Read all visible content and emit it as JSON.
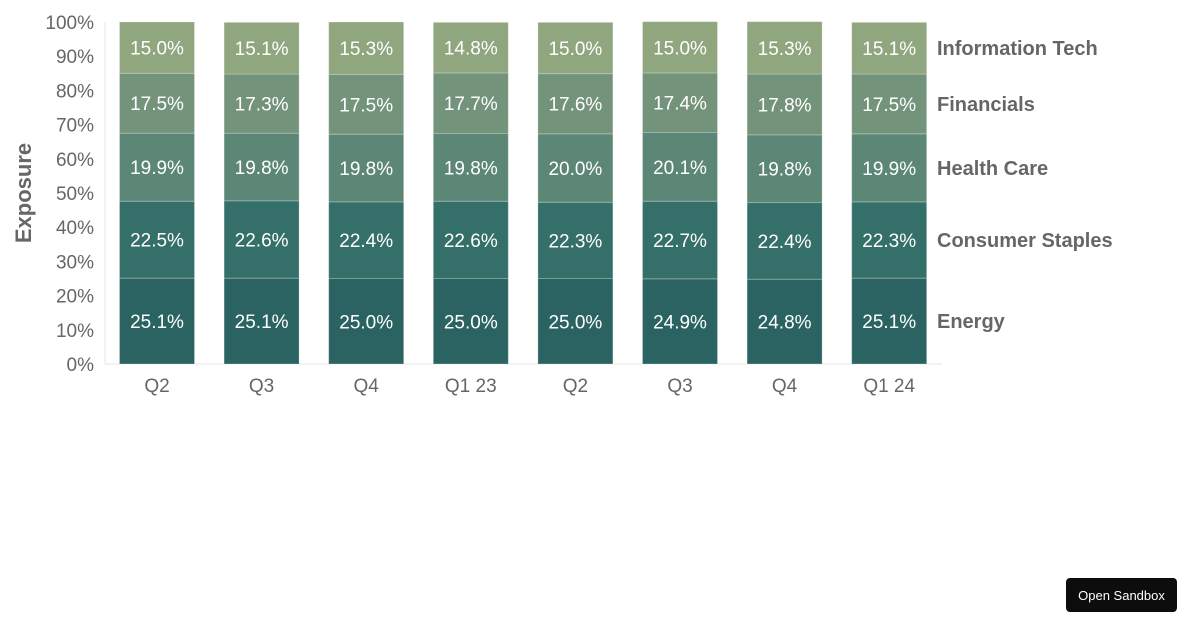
{
  "chart_data": {
    "type": "bar",
    "stacked": true,
    "percent": true,
    "title": "",
    "xlabel": "",
    "ylabel": "Exposure",
    "ylim": [
      0,
      100
    ],
    "yticks": [
      "0%",
      "10%",
      "20%",
      "30%",
      "40%",
      "50%",
      "60%",
      "70%",
      "80%",
      "90%",
      "100%"
    ],
    "categories": [
      "Q2",
      "Q3",
      "Q4",
      "Q1 23",
      "Q2",
      "Q3",
      "Q4",
      "Q1 24"
    ],
    "series": [
      {
        "name": "Energy",
        "color": "#2a6362",
        "values": [
          25.1,
          25.1,
          25.0,
          25.0,
          25.0,
          24.9,
          24.8,
          25.1
        ]
      },
      {
        "name": "Consumer Staples",
        "color": "#356f69",
        "values": [
          22.5,
          22.6,
          22.4,
          22.6,
          22.3,
          22.7,
          22.4,
          22.3
        ]
      },
      {
        "name": "Health Care",
        "color": "#5c8776",
        "values": [
          19.9,
          19.8,
          19.8,
          19.8,
          20.0,
          20.1,
          19.8,
          19.9
        ]
      },
      {
        "name": "Financials",
        "color": "#74937b",
        "values": [
          17.5,
          17.3,
          17.5,
          17.7,
          17.6,
          17.4,
          17.8,
          17.5
        ]
      },
      {
        "name": "Information Tech",
        "color": "#90a67f",
        "values": [
          15.0,
          15.1,
          15.3,
          14.8,
          15.0,
          15.0,
          15.3,
          15.1
        ]
      }
    ],
    "data_labels": [
      [
        "25.1%",
        "25.1%",
        "25.0%",
        "25.0%",
        "25.0%",
        "24.9%",
        "24.8%",
        "25.1%"
      ],
      [
        "22.5%",
        "22.6%",
        "22.4%",
        "22.6%",
        "22.3%",
        "22.7%",
        "22.4%",
        "22.3%"
      ],
      [
        "19.9%",
        "19.8%",
        "19.8%",
        "19.8%",
        "20.0%",
        "20.1%",
        "19.8%",
        "19.9%"
      ],
      [
        "17.5%",
        "17.3%",
        "17.5%",
        "17.7%",
        "17.6%",
        "17.4%",
        "17.8%",
        "17.5%"
      ],
      [
        "15.0%",
        "15.1%",
        "15.3%",
        "14.8%",
        "15.0%",
        "15.0%",
        "15.3%",
        "15.1%"
      ]
    ],
    "legend": "right (series names beside last bar)",
    "grid": false
  },
  "sandbox": {
    "label": "Open Sandbox"
  }
}
